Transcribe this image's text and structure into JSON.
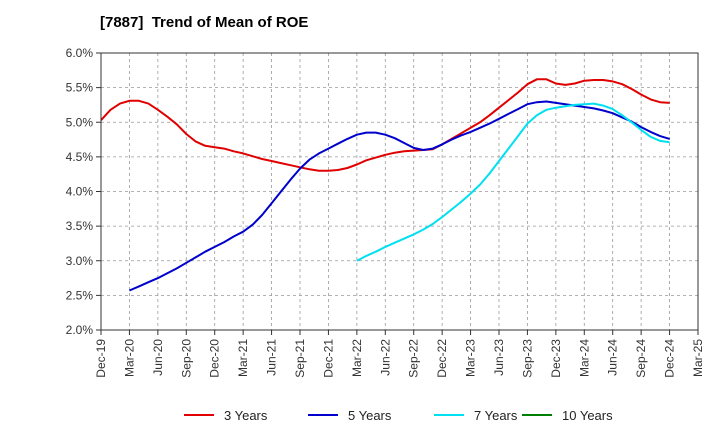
{
  "chart_data": {
    "type": "line",
    "title": "[7887]  Trend of Mean of ROE",
    "xlabel": "",
    "ylabel": "",
    "x_ticks": [
      "Dec-19",
      "Mar-20",
      "Jun-20",
      "Sep-20",
      "Dec-20",
      "Mar-21",
      "Jun-21",
      "Sep-21",
      "Dec-21",
      "Mar-22",
      "Jun-22",
      "Sep-22",
      "Dec-22",
      "Mar-23",
      "Jun-23",
      "Sep-23",
      "Dec-23",
      "Mar-24",
      "Jun-24",
      "Sep-24",
      "Dec-24",
      "Mar-25"
    ],
    "y_ticks": [
      "2.0%",
      "2.5%",
      "3.0%",
      "3.5%",
      "4.0%",
      "4.5%",
      "5.0%",
      "5.5%",
      "6.0%"
    ],
    "ylim": [
      2.0,
      6.0
    ],
    "y_unit": "%",
    "grid": true,
    "legend_position": "bottom",
    "series": [
      {
        "name": "3 Years",
        "color": "#e00000",
        "x": [
          "Dec-19",
          "Jan-20",
          "Feb-20",
          "Mar-20",
          "Apr-20",
          "May-20",
          "Jun-20",
          "Jul-20",
          "Aug-20",
          "Sep-20",
          "Oct-20",
          "Nov-20",
          "Dec-20",
          "Jan-21",
          "Feb-21",
          "Mar-21",
          "Apr-21",
          "May-21",
          "Jun-21",
          "Jul-21",
          "Aug-21",
          "Sep-21",
          "Oct-21",
          "Nov-21",
          "Dec-21",
          "Jan-22",
          "Feb-22",
          "Mar-22",
          "Apr-22",
          "May-22",
          "Jun-22",
          "Jul-22",
          "Aug-22",
          "Sep-22",
          "Oct-22",
          "Nov-22",
          "Dec-22",
          "Jan-23",
          "Feb-23",
          "Mar-23",
          "Apr-23",
          "May-23",
          "Jun-23",
          "Jul-23",
          "Aug-23",
          "Sep-23",
          "Oct-23",
          "Nov-23",
          "Dec-23",
          "Jan-24",
          "Feb-24",
          "Mar-24",
          "Apr-24",
          "May-24",
          "Jun-24",
          "Jul-24",
          "Aug-24",
          "Sep-24",
          "Oct-24",
          "Nov-24",
          "Dec-24"
        ],
        "values": [
          5.03,
          5.18,
          5.27,
          5.31,
          5.31,
          5.27,
          5.18,
          5.08,
          4.97,
          4.83,
          4.72,
          4.66,
          4.64,
          4.62,
          4.58,
          4.55,
          4.51,
          4.47,
          4.44,
          4.41,
          4.38,
          4.35,
          4.32,
          4.3,
          4.3,
          4.31,
          4.34,
          4.39,
          4.45,
          4.49,
          4.53,
          4.56,
          4.58,
          4.59,
          4.6,
          4.61,
          4.68,
          4.76,
          4.84,
          4.92,
          5.0,
          5.1,
          5.21,
          5.32,
          5.43,
          5.55,
          5.62,
          5.62,
          5.56,
          5.54,
          5.56,
          5.6,
          5.61,
          5.61,
          5.59,
          5.55,
          5.48,
          5.4,
          5.33,
          5.29,
          5.28
        ]
      },
      {
        "name": "5 Years",
        "color": "#0000cc",
        "x": [
          "Mar-20",
          "Apr-20",
          "May-20",
          "Jun-20",
          "Jul-20",
          "Aug-20",
          "Sep-20",
          "Oct-20",
          "Nov-20",
          "Dec-20",
          "Jan-21",
          "Feb-21",
          "Mar-21",
          "Apr-21",
          "May-21",
          "Jun-21",
          "Jul-21",
          "Aug-21",
          "Sep-21",
          "Oct-21",
          "Nov-21",
          "Dec-21",
          "Jan-22",
          "Feb-22",
          "Mar-22",
          "Apr-22",
          "May-22",
          "Jun-22",
          "Jul-22",
          "Aug-22",
          "Sep-22",
          "Oct-22",
          "Nov-22",
          "Dec-22",
          "Jan-23",
          "Feb-23",
          "Mar-23",
          "Apr-23",
          "May-23",
          "Jun-23",
          "Jul-23",
          "Aug-23",
          "Sep-23",
          "Oct-23",
          "Nov-23",
          "Dec-23",
          "Jan-24",
          "Feb-24",
          "Mar-24",
          "Apr-24",
          "May-24",
          "Jun-24",
          "Jul-24",
          "Aug-24",
          "Sep-24",
          "Oct-24",
          "Nov-24",
          "Dec-24"
        ],
        "values": [
          2.57,
          2.63,
          2.69,
          2.75,
          2.82,
          2.89,
          2.97,
          3.05,
          3.13,
          3.2,
          3.27,
          3.35,
          3.42,
          3.52,
          3.66,
          3.83,
          4.0,
          4.17,
          4.33,
          4.46,
          4.55,
          4.62,
          4.69,
          4.76,
          4.82,
          4.85,
          4.85,
          4.82,
          4.77,
          4.7,
          4.63,
          4.6,
          4.62,
          4.68,
          4.75,
          4.81,
          4.86,
          4.92,
          4.98,
          5.05,
          5.12,
          5.19,
          5.26,
          5.29,
          5.3,
          5.28,
          5.26,
          5.24,
          5.22,
          5.2,
          5.17,
          5.13,
          5.07,
          5.01,
          4.93,
          4.86,
          4.8,
          4.76
        ]
      },
      {
        "name": "7 Years",
        "color": "#00e0f0",
        "x": [
          "Mar-22",
          "Apr-22",
          "May-22",
          "Jun-22",
          "Jul-22",
          "Aug-22",
          "Sep-22",
          "Oct-22",
          "Nov-22",
          "Dec-22",
          "Jan-23",
          "Feb-23",
          "Mar-23",
          "Apr-23",
          "May-23",
          "Jun-23",
          "Jul-23",
          "Aug-23",
          "Sep-23",
          "Oct-23",
          "Nov-23",
          "Dec-23",
          "Jan-24",
          "Feb-24",
          "Mar-24",
          "Apr-24",
          "May-24",
          "Jun-24",
          "Jul-24",
          "Aug-24",
          "Sep-24",
          "Oct-24",
          "Nov-24",
          "Dec-24"
        ],
        "values": [
          3.0,
          3.07,
          3.13,
          3.2,
          3.26,
          3.32,
          3.38,
          3.45,
          3.53,
          3.63,
          3.74,
          3.85,
          3.97,
          4.1,
          4.26,
          4.44,
          4.62,
          4.8,
          4.98,
          5.1,
          5.18,
          5.21,
          5.23,
          5.25,
          5.26,
          5.27,
          5.24,
          5.19,
          5.1,
          5.0,
          4.89,
          4.79,
          4.73,
          4.71
        ]
      },
      {
        "name": "10 Years",
        "color": "#008000",
        "x": [],
        "values": []
      }
    ]
  }
}
